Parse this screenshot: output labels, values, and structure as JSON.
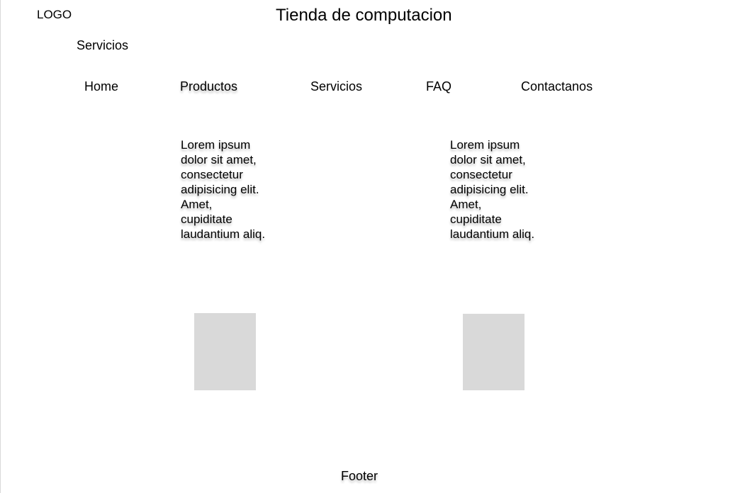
{
  "header": {
    "logo": "LOGO",
    "title": "Tienda de computacion",
    "section": "Servicios"
  },
  "nav": {
    "home": "Home",
    "productos": "Productos",
    "servicios": "Servicios",
    "faq": "FAQ",
    "contactanos": "Contactanos"
  },
  "cards": [
    {
      "text": "Lorem ipsum\ndolor sit amet,\nconsectetur\nadipisicing elit.\nAmet,\n       cupiditate\nlaudantium aliq."
    },
    {
      "text": "Lorem ipsum\ndolor sit amet,\nconsectetur\nadipisicing elit.\nAmet,\n       cupiditate\nlaudantium aliq."
    }
  ],
  "footer": {
    "label": "Footer"
  }
}
